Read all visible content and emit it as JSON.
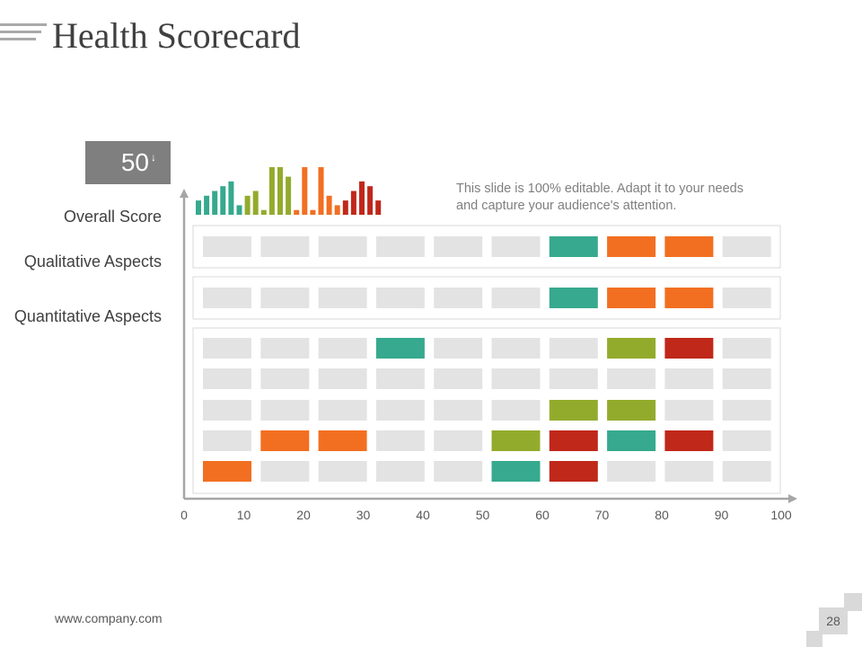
{
  "slide": {
    "title": "Health Scorecard",
    "footer_url": "www.company.com",
    "page_number": "28"
  },
  "score": {
    "value": "50",
    "arrow": "↓"
  },
  "note": "This slide is 100% editable. Adapt it to your needs and capture your audience's attention.",
  "colors": {
    "teal": "#36a98e",
    "orange": "#f26f21",
    "olive": "#93ab2c",
    "red": "#c0281a",
    "gray": "#e3e3e3",
    "axis": "#a6a6a6"
  },
  "chart_data": {
    "type": "heatmap",
    "title": "Health Scorecard",
    "xlim": [
      0,
      100
    ],
    "x_ticks": [
      "0",
      "10",
      "20",
      "30",
      "40",
      "50",
      "60",
      "70",
      "80",
      "90",
      "100"
    ],
    "rows": [
      {
        "label": "Overall Score",
        "group": "overall",
        "cells": [
          "gray",
          "gray",
          "gray",
          "gray",
          "gray",
          "gray",
          "teal",
          "orange",
          "orange",
          "gray"
        ]
      },
      {
        "label": "Qualitative Aspects",
        "group": "qualitative",
        "cells": [
          "gray",
          "gray",
          "gray",
          "gray",
          "gray",
          "gray",
          "teal",
          "orange",
          "orange",
          "gray"
        ]
      },
      {
        "label": "Quantitative Aspects",
        "group": "quantitative",
        "cells": [
          "gray",
          "gray",
          "gray",
          "teal",
          "gray",
          "gray",
          "gray",
          "olive",
          "red",
          "gray"
        ]
      },
      {
        "label": "",
        "group": "quantitative",
        "cells": [
          "gray",
          "gray",
          "gray",
          "gray",
          "gray",
          "gray",
          "gray",
          "gray",
          "gray",
          "gray"
        ]
      },
      {
        "label": "",
        "group": "quantitative",
        "cells": [
          "gray",
          "gray",
          "gray",
          "gray",
          "gray",
          "gray",
          "olive",
          "olive",
          "gray",
          "gray"
        ]
      },
      {
        "label": "",
        "group": "quantitative",
        "cells": [
          "gray",
          "orange",
          "orange",
          "gray",
          "gray",
          "olive",
          "red",
          "teal",
          "red",
          "gray"
        ]
      },
      {
        "label": "",
        "group": "quantitative",
        "cells": [
          "orange",
          "gray",
          "gray",
          "gray",
          "gray",
          "teal",
          "red",
          "gray",
          "gray",
          "gray"
        ]
      }
    ],
    "mini_bars": {
      "teal": [
        3,
        4,
        5,
        6,
        7,
        2
      ],
      "olive": [
        4,
        5,
        1,
        10,
        10,
        8
      ],
      "orange": [
        1,
        10,
        1,
        10,
        4,
        2
      ],
      "red": [
        3,
        5,
        7,
        6,
        3
      ]
    }
  }
}
